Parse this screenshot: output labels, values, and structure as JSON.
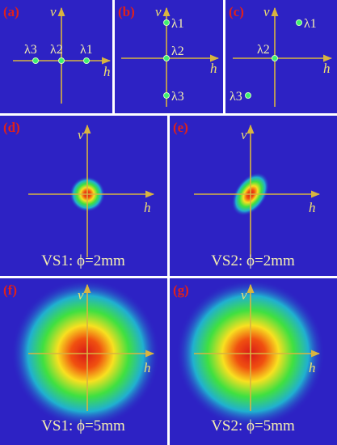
{
  "panels": [
    {
      "label": "(a)",
      "v": "v",
      "h": "h",
      "points": [
        "λ3",
        "λ2",
        "λ1"
      ]
    },
    {
      "label": "(b)",
      "v": "v",
      "h": "h",
      "points": [
        "λ1",
        "λ2",
        "λ3"
      ]
    },
    {
      "label": "(c)",
      "v": "v",
      "h": "h",
      "points": [
        "λ1",
        "λ2",
        "λ3"
      ]
    },
    {
      "label": "(d)",
      "v": "v",
      "h": "h",
      "caption": "VS1: ϕ=2mm"
    },
    {
      "label": "(e)",
      "v": "v",
      "h": "h",
      "caption": "VS2: ϕ=2mm"
    },
    {
      "label": "(f)",
      "v": "v",
      "h": "h",
      "caption": "VS1: ϕ=5mm"
    },
    {
      "label": "(g)",
      "v": "v",
      "h": "h",
      "caption": "VS2: ϕ=5mm"
    }
  ]
}
